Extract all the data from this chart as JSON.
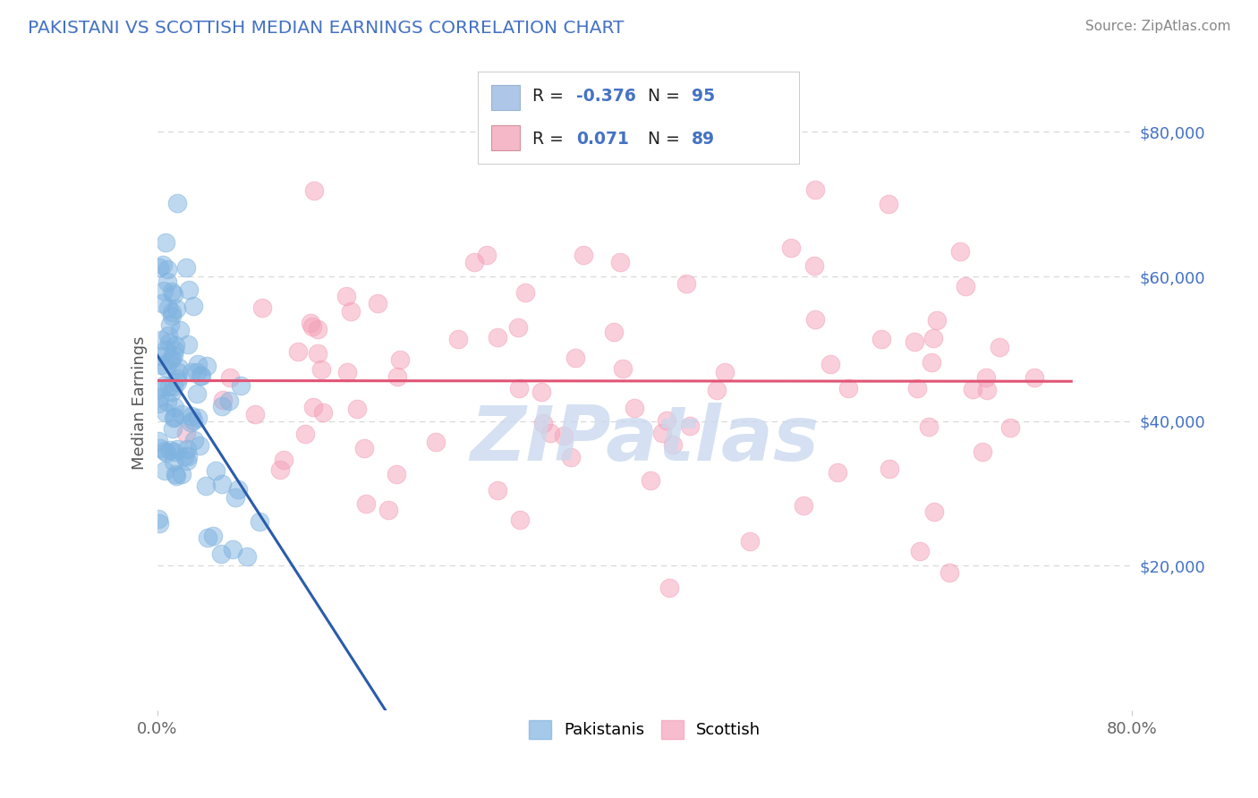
{
  "title": "PAKISTANI VS SCOTTISH MEDIAN EARNINGS CORRELATION CHART",
  "source_text": "Source: ZipAtlas.com",
  "ylabel": "Median Earnings",
  "xmin": 0.0,
  "xmax": 0.8,
  "ymin": 0,
  "ymax": 85000,
  "yticks": [
    20000,
    40000,
    60000,
    80000
  ],
  "ytick_labels": [
    "$20,000",
    "$40,000",
    "$60,000",
    "$80,000"
  ],
  "xtick_labels": [
    "0.0%",
    "80.0%"
  ],
  "xticks": [
    0.0,
    0.8
  ],
  "pakistani_R": -0.376,
  "pakistani_N": 95,
  "scottish_R": 0.071,
  "scottish_N": 89,
  "blue_color": "#7fb3e0",
  "pink_color": "#f4a0b8",
  "blue_line_color": "#2a5caa",
  "pink_line_color": "#e05575",
  "dashed_line_color": "#b0b8c8",
  "watermark_color": "#c8d8ee",
  "title_color": "#4472c4",
  "background_color": "#ffffff",
  "grid_color": "#d8d8d8",
  "legend_blue_patch": "#aec6e8",
  "legend_pink_patch": "#f4b8c8",
  "legend_R_color": "#4472c4",
  "legend_N_color": "#4472c4",
  "legend_text_color": "#222222"
}
